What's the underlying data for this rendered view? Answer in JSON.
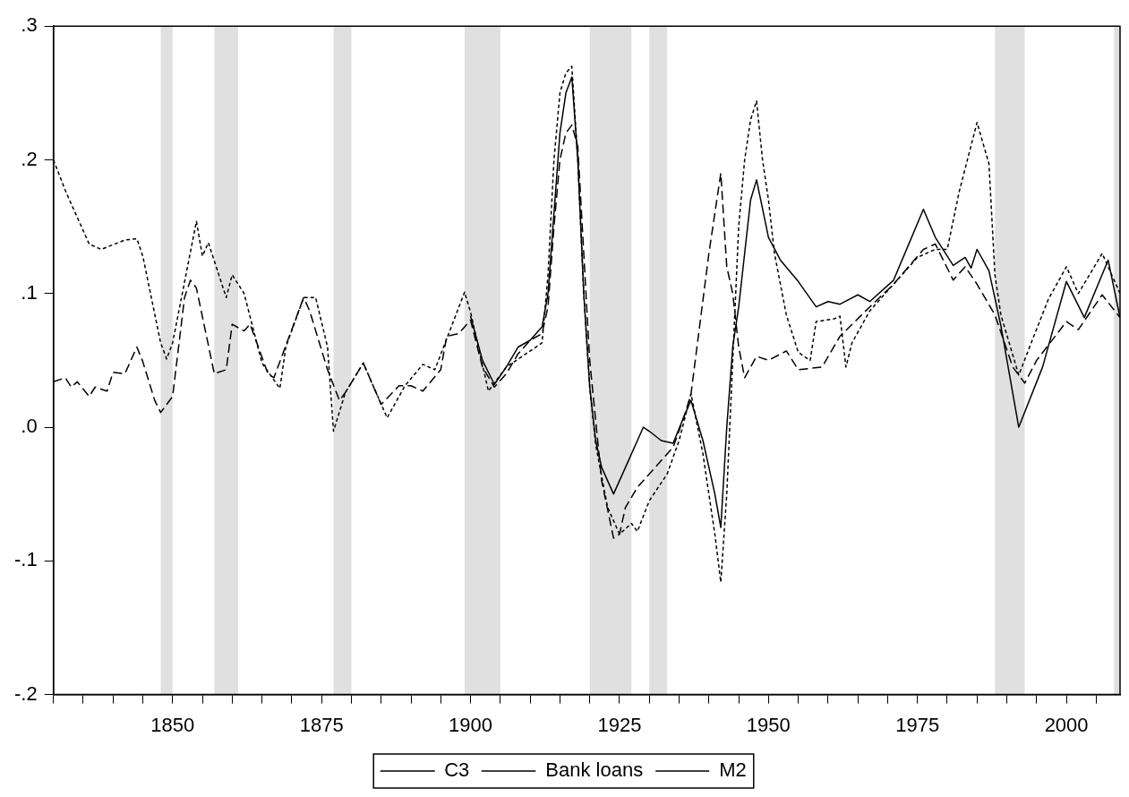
{
  "chart_data": {
    "type": "line",
    "legend": "bottom",
    "xlim": [
      1830,
      2009
    ],
    "ylim": [
      -0.2,
      0.3
    ],
    "xticks": [
      {
        "value": 1830,
        "label": null
      },
      {
        "value": 1835,
        "label": null
      },
      {
        "value": 1840,
        "label": null
      },
      {
        "value": 1845,
        "label": null
      },
      1850,
      {
        "value": 1855,
        "label": null
      },
      {
        "value": 1860,
        "label": null
      },
      {
        "value": 1865,
        "label": null
      },
      {
        "value": 1870,
        "label": null
      },
      1875,
      {
        "value": 1880,
        "label": null
      },
      {
        "value": 1885,
        "label": null
      },
      {
        "value": 1890,
        "label": null
      },
      {
        "value": 1895,
        "label": null
      },
      1900,
      {
        "value": 1905,
        "label": null
      },
      {
        "value": 1910,
        "label": null
      },
      {
        "value": 1915,
        "label": null
      },
      {
        "value": 1920,
        "label": null
      },
      1925,
      {
        "value": 1930,
        "label": null
      },
      {
        "value": 1935,
        "label": null
      },
      {
        "value": 1940,
        "label": null
      },
      {
        "value": 1945,
        "label": null
      },
      1950,
      {
        "value": 1955,
        "label": null
      },
      {
        "value": 1960,
        "label": null
      },
      {
        "value": 1965,
        "label": null
      },
      {
        "value": 1970,
        "label": null
      },
      1975,
      {
        "value": 1980,
        "label": null
      },
      {
        "value": 1985,
        "label": null
      },
      {
        "value": 1990,
        "label": null
      },
      {
        "value": 1995,
        "label": null
      },
      2000,
      {
        "value": 2005,
        "label": null
      }
    ],
    "yticks": [
      {
        "value": -0.2,
        "label": "-.2"
      },
      {
        "value": -0.1,
        "label": "-.1"
      },
      {
        "value": 0,
        "label": ".0"
      },
      {
        "value": 0.1,
        "label": ".1"
      },
      {
        "value": 0.2,
        "label": ".2"
      },
      {
        "value": 0.3,
        "label": ".3"
      }
    ],
    "bands": [
      {
        "axis": "x",
        "from": 1848,
        "to": 1850,
        "color": "#e0e0e0"
      },
      {
        "axis": "x",
        "from": 1857,
        "to": 1861,
        "color": "#e0e0e0"
      },
      {
        "axis": "x",
        "from": 1877,
        "to": 1880,
        "color": "#e0e0e0"
      },
      {
        "axis": "x",
        "from": 1899,
        "to": 1905,
        "color": "#e0e0e0"
      },
      {
        "axis": "x",
        "from": 1920,
        "to": 1927,
        "color": "#e0e0e0"
      },
      {
        "axis": "x",
        "from": 1930,
        "to": 1933,
        "color": "#e0e0e0"
      },
      {
        "axis": "x",
        "from": 1988,
        "to": 1993,
        "color": "#e0e0e0"
      },
      {
        "axis": "x",
        "from": 2008,
        "to": 2009,
        "color": "#e0e0e0"
      }
    ],
    "series": [
      {
        "name": "C3",
        "color": "#000000",
        "line_style": "solid",
        "x": [
          1900,
          1902,
          1904,
          1906,
          1908,
          1910,
          1912,
          1913,
          1914,
          1915,
          1916,
          1917,
          1918,
          1919,
          1920,
          1921,
          1922,
          1924,
          1926,
          1928,
          1929,
          1930,
          1932,
          1934,
          1936,
          1937,
          1939,
          1941,
          1942,
          1943,
          1944,
          1945,
          1946,
          1947,
          1948,
          1950,
          1952,
          1955,
          1958,
          1960,
          1962,
          1965,
          1967,
          1971,
          1976,
          1978,
          1981,
          1983,
          1984,
          1985,
          1987,
          1989,
          1992,
          1996,
          2000,
          2003,
          2007,
          2009
        ],
        "values": [
          0.083,
          0.05,
          0.032,
          0.045,
          0.06,
          0.065,
          0.075,
          0.1,
          0.16,
          0.22,
          0.25,
          0.262,
          0.2,
          0.1,
          0.03,
          -0.01,
          -0.03,
          -0.05,
          -0.03,
          -0.01,
          0.0,
          -0.003,
          -0.01,
          -0.012,
          0.01,
          0.02,
          -0.01,
          -0.05,
          -0.075,
          0.0,
          0.06,
          0.09,
          0.13,
          0.17,
          0.185,
          0.142,
          0.125,
          0.109,
          0.09,
          0.094,
          0.092,
          0.099,
          0.094,
          0.11,
          0.163,
          0.142,
          0.121,
          0.127,
          0.119,
          0.133,
          0.117,
          0.076,
          0.0,
          0.045,
          0.109,
          0.082,
          0.125,
          0.082
        ]
      },
      {
        "name": "Bank loans",
        "color": "#000000",
        "line_style": "dotted",
        "x": [
          1830,
          1832,
          1836,
          1838,
          1842,
          1844,
          1845,
          1848,
          1849,
          1850,
          1854,
          1855,
          1856,
          1859,
          1860,
          1862,
          1865,
          1868,
          1869,
          1872,
          1874,
          1876,
          1877,
          1879,
          1882,
          1886,
          1889,
          1892,
          1894,
          1896,
          1899,
          1900,
          1903,
          1906,
          1912,
          1913,
          1914,
          1915,
          1916,
          1917,
          1918,
          1919,
          1920,
          1921,
          1923,
          1925,
          1927,
          1928,
          1930,
          1933,
          1935,
          1937,
          1939,
          1941,
          1942,
          1943,
          1944,
          1945,
          1946,
          1947,
          1948,
          1949,
          1950,
          1951,
          1953,
          1955,
          1957,
          1958,
          1961,
          1962,
          1963,
          1964,
          1967,
          1971,
          1975,
          1978,
          1980,
          1982,
          1985,
          1987,
          1988,
          1989,
          1992,
          1994,
          1997,
          2000,
          2002,
          2006,
          2009
        ],
        "values": [
          0.2,
          0.177,
          0.137,
          0.133,
          0.14,
          0.141,
          0.128,
          0.063,
          0.051,
          0.063,
          0.154,
          0.128,
          0.138,
          0.097,
          0.114,
          0.1,
          0.048,
          0.029,
          0.06,
          0.097,
          0.097,
          0.06,
          -0.003,
          0.026,
          0.048,
          0.007,
          0.031,
          0.047,
          0.043,
          0.066,
          0.101,
          0.086,
          0.027,
          0.045,
          0.063,
          0.114,
          0.2,
          0.25,
          0.265,
          0.27,
          0.2,
          0.1,
          0.03,
          -0.013,
          -0.06,
          -0.08,
          -0.072,
          -0.078,
          -0.055,
          -0.035,
          -0.01,
          0.025,
          -0.02,
          -0.08,
          -0.116,
          -0.05,
          0.05,
          0.15,
          0.2,
          0.23,
          0.244,
          0.2,
          0.17,
          0.13,
          0.084,
          0.056,
          0.05,
          0.079,
          0.081,
          0.083,
          0.045,
          0.063,
          0.087,
          0.107,
          0.127,
          0.133,
          0.133,
          0.176,
          0.228,
          0.197,
          0.114,
          0.084,
          0.039,
          0.062,
          0.096,
          0.12,
          0.1,
          0.13,
          0.1
        ]
      },
      {
        "name": "M2",
        "color": "#000000",
        "line_style": "dashed",
        "x": [
          1830,
          1832,
          1833,
          1834,
          1836,
          1837,
          1839,
          1840,
          1842,
          1844,
          1845,
          1847,
          1848,
          1850,
          1852,
          1853,
          1854,
          1857,
          1859,
          1860,
          1862,
          1863,
          1866,
          1867,
          1872,
          1873,
          1876,
          1878,
          1879,
          1882,
          1885,
          1888,
          1890,
          1892,
          1895,
          1896,
          1898,
          1900,
          1902,
          1904,
          1906,
          1908,
          1910,
          1912,
          1913,
          1914,
          1915,
          1916,
          1917,
          1918,
          1919,
          1920,
          1922,
          1924,
          1925,
          1926,
          1928,
          1930,
          1932,
          1934,
          1936,
          1937,
          1938,
          1940,
          1942,
          1943,
          1944,
          1945,
          1946,
          1948,
          1950,
          1953,
          1955,
          1959,
          1962,
          1967,
          1971,
          1976,
          1978,
          1981,
          1983,
          1985,
          1988,
          1991,
          1993,
          1995,
          2000,
          2002,
          2006,
          2009
        ],
        "values": [
          0.034,
          0.037,
          0.03,
          0.034,
          0.023,
          0.03,
          0.027,
          0.041,
          0.04,
          0.06,
          0.049,
          0.02,
          0.011,
          0.023,
          0.097,
          0.11,
          0.104,
          0.04,
          0.043,
          0.077,
          0.072,
          0.077,
          0.04,
          0.037,
          0.097,
          0.087,
          0.043,
          0.02,
          0.026,
          0.048,
          0.017,
          0.031,
          0.031,
          0.027,
          0.043,
          0.068,
          0.07,
          0.08,
          0.045,
          0.03,
          0.04,
          0.055,
          0.065,
          0.07,
          0.09,
          0.15,
          0.2,
          0.22,
          0.226,
          0.21,
          0.13,
          0.05,
          -0.04,
          -0.083,
          -0.08,
          -0.06,
          -0.045,
          -0.035,
          -0.025,
          -0.015,
          0.01,
          0.025,
          0.06,
          0.13,
          0.19,
          0.12,
          0.1,
          0.06,
          0.037,
          0.053,
          0.05,
          0.057,
          0.043,
          0.045,
          0.068,
          0.09,
          0.107,
          0.133,
          0.137,
          0.11,
          0.12,
          0.107,
          0.084,
          0.045,
          0.033,
          0.05,
          0.079,
          0.073,
          0.099,
          0.082
        ]
      }
    ]
  }
}
